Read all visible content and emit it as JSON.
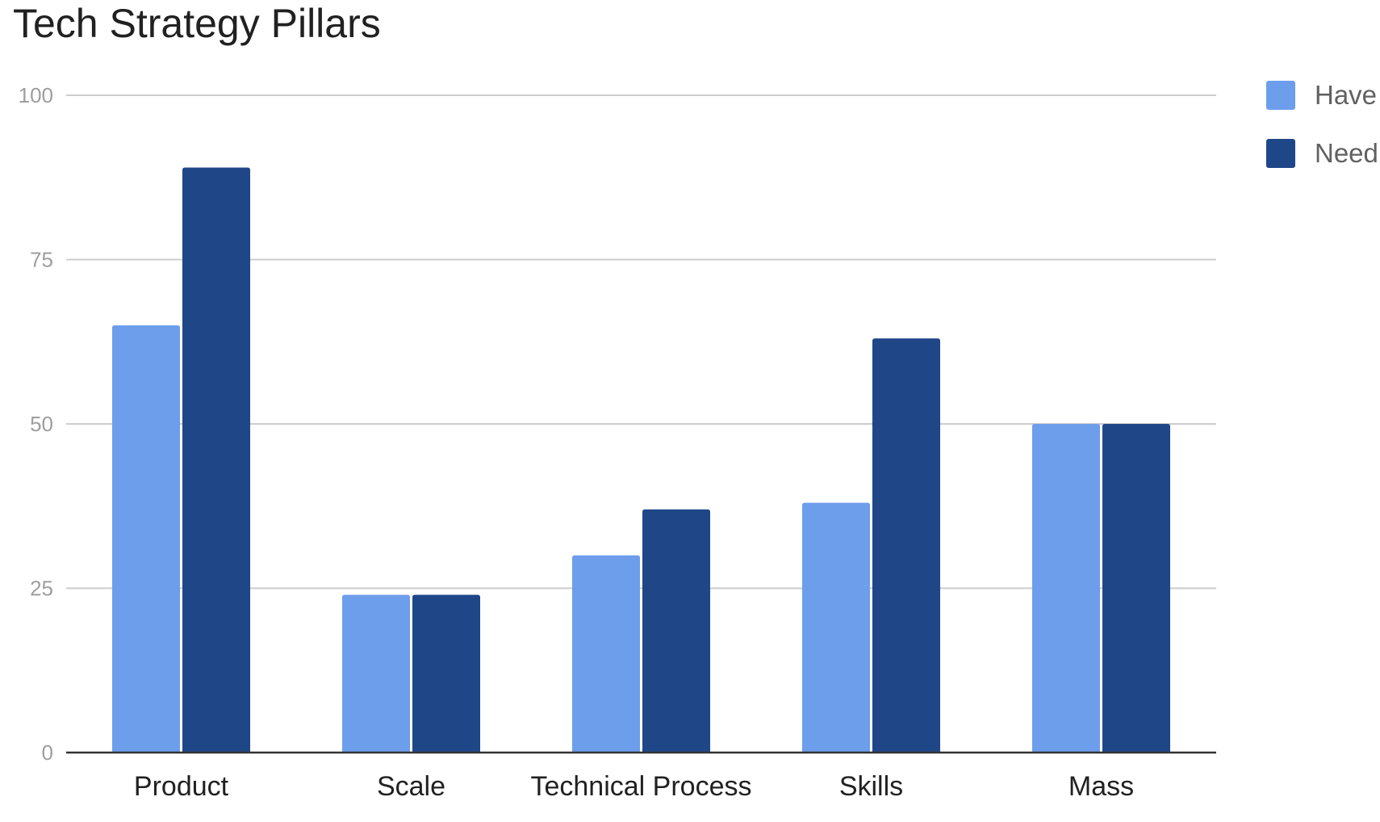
{
  "chart_data": {
    "type": "bar",
    "title": "Tech Strategy Pillars",
    "categories": [
      "Product",
      "Scale",
      "Technical Process",
      "Skills",
      "Mass"
    ],
    "series": [
      {
        "name": "Have",
        "values": [
          65,
          24,
          30,
          38,
          50
        ],
        "color": "#6d9eeb"
      },
      {
        "name": "Need",
        "values": [
          89,
          24,
          37,
          63,
          50
        ],
        "color": "#1f4788"
      }
    ],
    "ylim": [
      0,
      100
    ],
    "yticks": [
      "0",
      "25",
      "50",
      "75",
      "100"
    ],
    "grid": true,
    "legend": "right"
  }
}
